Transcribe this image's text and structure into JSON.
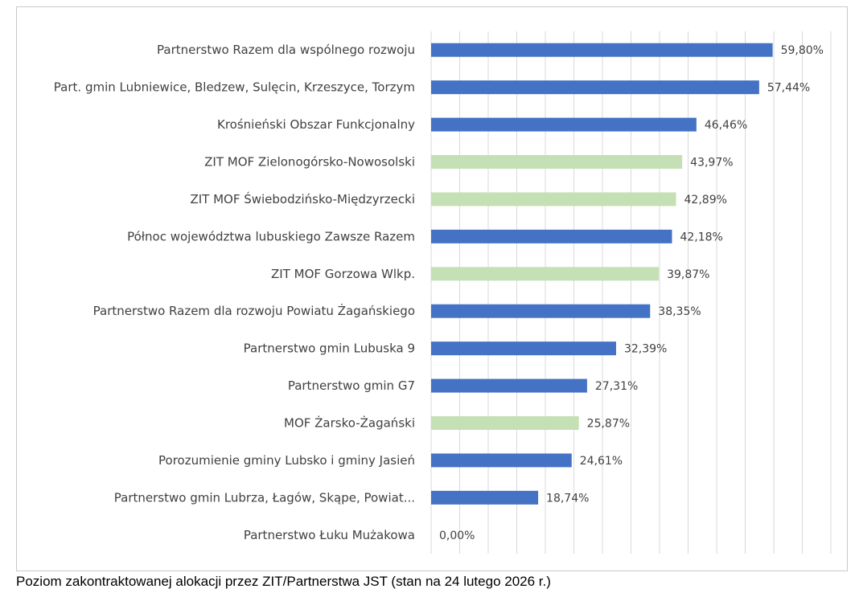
{
  "chart_data": {
    "type": "bar",
    "orientation": "horizontal",
    "categories": [
      "Partnerstwo  Razem dla wspólnego rozwoju",
      "Part. gmin Lubniewice, Bledzew, Sulęcin, Krzeszyce, Torzym",
      "Krośnieński Obszar Funkcjonalny",
      "ZIT MOF Zielonogórsko-Nowosolski",
      "ZIT MOF Świebodzińsko-Międzyrzecki",
      "Północ województwa lubuskiego Zawsze Razem",
      "ZIT MOF Gorzowa Wlkp.",
      "Partnerstwo Razem dla rozwoju Powiatu Żagańskiego",
      "Partnerstwo gmin  Lubuska 9",
      "Partnerstwo gmin  G7",
      "MOF Żarsko-Żagański",
      "Porozumienie gminy Lubsko i gminy Jasień",
      "Partnerstwo gmin Lubrza, Łagów, Skąpe, Powiat...",
      "Partnerstwo  Łuku Mużakowa"
    ],
    "values": [
      59.8,
      57.44,
      46.46,
      43.97,
      42.89,
      42.18,
      39.87,
      38.35,
      32.39,
      27.31,
      25.87,
      24.61,
      18.74,
      0.0
    ],
    "value_labels": [
      "59,80%",
      "57,44%",
      "46,46%",
      "43,97%",
      "42,89%",
      "42,18%",
      "39,87%",
      "38,35%",
      "32,39%",
      "27,31%",
      "25,87%",
      "24,61%",
      "18,74%",
      "0,00%"
    ],
    "groups": [
      "partnerstwo",
      "partnerstwo",
      "partnerstwo",
      "zit",
      "zit",
      "partnerstwo",
      "zit",
      "partnerstwo",
      "partnerstwo",
      "partnerstwo",
      "zit",
      "partnerstwo",
      "partnerstwo",
      "partnerstwo"
    ],
    "colors": {
      "partnerstwo": "#4472c4",
      "zit": "#c5e0b4",
      "gridline": "#d9d9d9",
      "text": "#404040"
    },
    "xlim": [
      0,
      70
    ],
    "grid": true,
    "title": "",
    "xlabel": "",
    "ylabel": ""
  },
  "caption": "Poziom zakontraktowanej alokacji przez ZIT/Partnerstwa JST (stan na 24 lutego 2026 r.)"
}
